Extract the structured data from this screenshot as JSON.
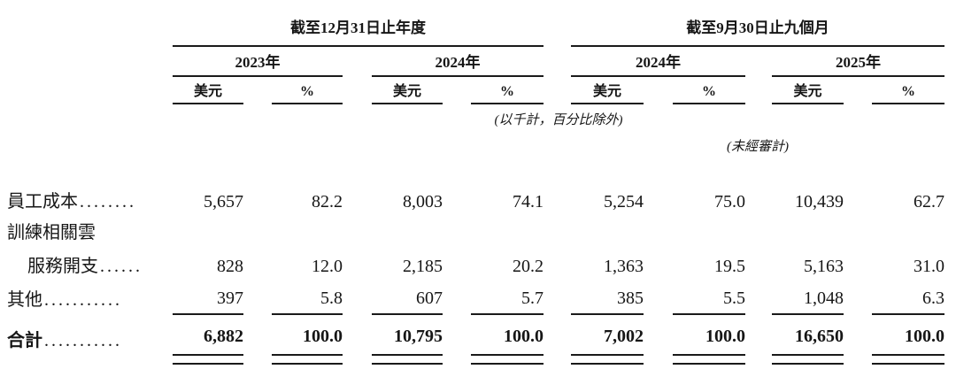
{
  "table": {
    "groups": [
      {
        "label": "截至12月31日止年度"
      },
      {
        "label": "截至9月30日止九個月"
      }
    ],
    "years": [
      "2023年",
      "2024年",
      "2024年",
      "2025年"
    ],
    "units": [
      "美元",
      "%",
      "美元",
      "%",
      "美元",
      "%",
      "美元",
      "%"
    ],
    "notes": {
      "thousands": "(以千計，百分比除外)",
      "unaudited": "(未經審計)"
    },
    "rows": [
      {
        "label": "員工成本",
        "dots": "........",
        "values": [
          "5,657",
          "82.2",
          "8,003",
          "74.1",
          "5,254",
          "75.0",
          "10,439",
          "62.7"
        ]
      },
      {
        "label": "訓練相關雲",
        "dots": "",
        "values": []
      },
      {
        "label": "服務開支",
        "dots": "......",
        "values": [
          "828",
          "12.0",
          "2,185",
          "20.2",
          "1,363",
          "19.5",
          "5,163",
          "31.0"
        ]
      },
      {
        "label": "其他",
        "dots": "...........",
        "values": [
          "397",
          "5.8",
          "607",
          "5.7",
          "385",
          "5.5",
          "1,048",
          "6.3"
        ]
      }
    ],
    "total": {
      "label": "合計",
      "dots": "...........",
      "values": [
        "6,882",
        "100.0",
        "10,795",
        "100.0",
        "7,002",
        "100.0",
        "16,650",
        "100.0"
      ]
    },
    "colors": {
      "text": "#161616",
      "rule": "#1a1a1a",
      "background": "#ffffff"
    }
  }
}
